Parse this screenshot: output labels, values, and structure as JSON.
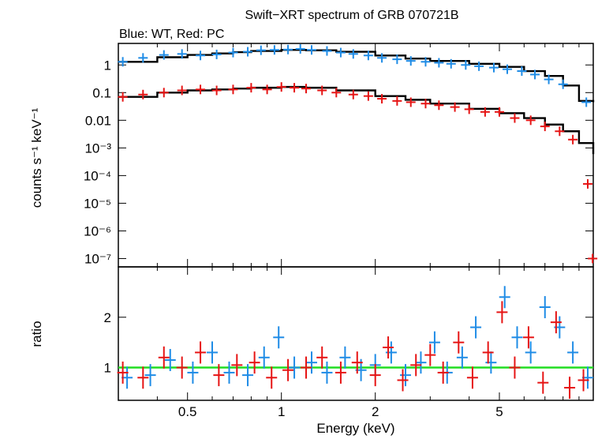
{
  "chart_data": [
    {
      "type": "scatter",
      "title": "Swift−XRT spectrum of GRB 070721B",
      "subtitle": "Blue: WT, Red: PC",
      "xlabel": "",
      "ylabel": "counts s⁻¹ keV⁻¹",
      "xscale": "log",
      "yscale": "log",
      "xlim": [
        0.3,
        10
      ],
      "ylim": [
        5e-08,
        6
      ],
      "x_tick_labels": [],
      "y_ticks": [
        {
          "value": 1,
          "label": "1"
        },
        {
          "value": 0.1,
          "label": "0.1"
        },
        {
          "value": 0.01,
          "label": "0.01"
        },
        {
          "value": 0.001,
          "label": "10⁻³"
        },
        {
          "value": 0.0001,
          "label": "10⁻⁴"
        },
        {
          "value": 1e-05,
          "label": "10⁻⁵"
        },
        {
          "value": 1e-06,
          "label": "10⁻⁶"
        },
        {
          "value": 1e-07,
          "label": "10⁻⁷"
        }
      ],
      "series": [
        {
          "color": "#1f8ce6",
          "x": [
            0.31,
            0.36,
            0.42,
            0.48,
            0.55,
            0.62,
            0.7,
            0.78,
            0.86,
            0.95,
            1.05,
            1.15,
            1.25,
            1.4,
            1.55,
            1.7,
            1.9,
            2.1,
            2.35,
            2.6,
            2.9,
            3.2,
            3.5,
            3.9,
            4.3,
            4.8,
            5.3,
            5.9,
            6.5,
            7.2,
            8.0,
            9.5
          ],
          "y": [
            1.3,
            1.8,
            2.3,
            2.5,
            2.2,
            2.4,
            2.8,
            3.0,
            3.4,
            3.5,
            3.6,
            3.8,
            3.5,
            3.2,
            2.8,
            2.5,
            2.2,
            1.8,
            1.6,
            1.4,
            1.3,
            1.2,
            1.1,
            1.0,
            0.9,
            0.8,
            0.7,
            0.6,
            0.45,
            0.3,
            0.2,
            0.045
          ]
        },
        {
          "color": "#e61414",
          "x": [
            0.31,
            0.36,
            0.42,
            0.48,
            0.55,
            0.62,
            0.7,
            0.8,
            0.9,
            1.0,
            1.1,
            1.2,
            1.35,
            1.5,
            1.7,
            1.9,
            2.1,
            2.35,
            2.6,
            2.9,
            3.2,
            3.6,
            4.0,
            4.5,
            5.0,
            5.6,
            6.3,
            7.0,
            7.8,
            8.6,
            9.6,
            9.95
          ],
          "y": [
            0.07,
            0.085,
            0.1,
            0.12,
            0.13,
            0.12,
            0.13,
            0.15,
            0.13,
            0.16,
            0.15,
            0.14,
            0.12,
            0.1,
            0.085,
            0.075,
            0.06,
            0.05,
            0.045,
            0.04,
            0.035,
            0.03,
            0.025,
            0.02,
            0.02,
            0.012,
            0.01,
            0.006,
            0.004,
            0.002,
            5e-05,
            1e-07
          ]
        }
      ],
      "models": [
        {
          "color": "#000000",
          "x": [
            0.3,
            0.4,
            0.5,
            0.6,
            0.7,
            0.8,
            1.0,
            1.2,
            1.5,
            2.0,
            2.5,
            3.0,
            4.0,
            5.0,
            6.0,
            7.0,
            8.0,
            9.0,
            10.0
          ],
          "y": [
            1.3,
            1.9,
            2.3,
            2.6,
            2.9,
            3.2,
            3.5,
            3.4,
            3.0,
            2.2,
            1.7,
            1.4,
            1.1,
            0.85,
            0.6,
            0.4,
            0.18,
            0.05,
            0.045
          ]
        },
        {
          "color": "#000000",
          "x": [
            0.3,
            0.4,
            0.5,
            0.6,
            0.7,
            0.8,
            1.0,
            1.2,
            1.5,
            2.0,
            2.5,
            3.0,
            4.0,
            5.0,
            6.0,
            7.0,
            8.0,
            9.0,
            10.0
          ],
          "y": [
            0.07,
            0.1,
            0.12,
            0.13,
            0.14,
            0.15,
            0.16,
            0.15,
            0.12,
            0.075,
            0.055,
            0.04,
            0.026,
            0.018,
            0.012,
            0.007,
            0.004,
            0.0015,
            0.0006
          ]
        }
      ]
    },
    {
      "type": "scatter",
      "title": "",
      "xlabel": "Energy (keV)",
      "ylabel": "ratio",
      "xscale": "log",
      "xlim": [
        0.3,
        10
      ],
      "ylim": [
        0.35,
        3.0
      ],
      "x_ticks": [
        {
          "value": 0.5,
          "label": "0.5"
        },
        {
          "value": 1,
          "label": "1"
        },
        {
          "value": 2,
          "label": "2"
        },
        {
          "value": 5,
          "label": "5"
        }
      ],
      "y_ticks": [
        {
          "value": 1,
          "label": "1"
        },
        {
          "value": 2,
          "label": "2"
        }
      ],
      "reference_line": {
        "value": 1,
        "color": "#22dd22"
      },
      "series": [
        {
          "color": "#1f8ce6",
          "x": [
            0.32,
            0.38,
            0.44,
            0.52,
            0.6,
            0.68,
            0.78,
            0.88,
            0.98,
            1.1,
            1.25,
            1.4,
            1.6,
            1.8,
            2.0,
            2.25,
            2.5,
            2.8,
            3.1,
            3.4,
            3.8,
            4.2,
            4.7,
            5.2,
            5.7,
            6.3,
            7.0,
            7.8,
            8.6,
            9.6
          ],
          "y": [
            0.8,
            0.85,
            1.15,
            0.9,
            1.3,
            0.9,
            0.85,
            1.2,
            1.6,
            1.0,
            1.1,
            0.9,
            1.2,
            0.95,
            1.05,
            1.3,
            0.85,
            1.1,
            1.5,
            0.9,
            1.2,
            1.8,
            1.1,
            2.4,
            1.6,
            1.3,
            2.2,
            1.8,
            1.3,
            0.8
          ]
        },
        {
          "color": "#e61414",
          "x": [
            0.31,
            0.36,
            0.42,
            0.48,
            0.55,
            0.63,
            0.72,
            0.82,
            0.93,
            1.05,
            1.2,
            1.35,
            1.55,
            1.75,
            2.0,
            2.2,
            2.45,
            2.7,
            3.0,
            3.3,
            3.7,
            4.1,
            4.6,
            5.1,
            5.6,
            6.2,
            6.9,
            7.6,
            8.4,
            9.3
          ],
          "y": [
            0.9,
            0.8,
            1.2,
            1.0,
            1.3,
            0.85,
            1.05,
            1.1,
            0.8,
            0.95,
            1.0,
            1.2,
            0.9,
            1.1,
            0.85,
            1.4,
            0.75,
            1.05,
            1.25,
            0.9,
            1.5,
            0.8,
            1.3,
            2.1,
            1.0,
            1.6,
            0.7,
            1.9,
            0.6,
            0.75
          ]
        }
      ]
    }
  ]
}
